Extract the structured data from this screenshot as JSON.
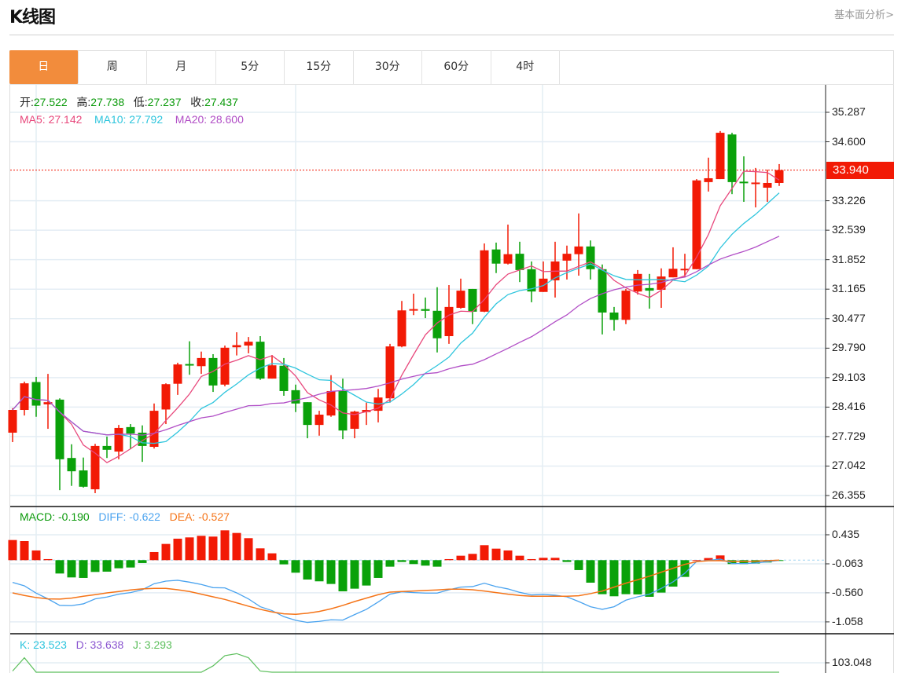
{
  "header": {
    "title": "K线图",
    "fundamental_link": "基本面分析>"
  },
  "tabs": [
    {
      "label": "日",
      "active": true
    },
    {
      "label": "周"
    },
    {
      "label": "月"
    },
    {
      "label": "5分"
    },
    {
      "label": "15分"
    },
    {
      "label": "30分"
    },
    {
      "label": "60分"
    },
    {
      "label": "4时"
    }
  ],
  "ohlc_legend": {
    "open_label": "开:",
    "open": "27.522",
    "high_label": "高:",
    "high": "27.738",
    "low_label": "低:",
    "low": "27.237",
    "close_label": "收:",
    "close": "27.437"
  },
  "ma_legend": {
    "ma5": "MA5: 27.142",
    "ma10": "MA10: 27.792",
    "ma20": "MA20: 28.600"
  },
  "macd_legend": {
    "macd": "MACD: -0.190",
    "diff": "DIFF: -0.622",
    "dea": "DEA: -0.527"
  },
  "kdj_legend": {
    "k": "K: 23.523",
    "d": "D: 33.638",
    "j": "J: 3.293"
  },
  "colors": {
    "up": "#f21a05",
    "down": "#0aa10a",
    "ma5": "#e8487c",
    "ma10": "#2ec5dd",
    "ma20": "#b14ec6",
    "diff": "#4aa3ef",
    "dea": "#f57418",
    "j": "#5cbf5c",
    "active_tab": "#f28c3c"
  },
  "chart_data": [
    {
      "type": "candlestick",
      "title": "K线图",
      "last_price": "33.940",
      "y_ticks": [
        "35.287",
        "34.600",
        "33.226",
        "32.539",
        "31.852",
        "31.165",
        "30.477",
        "29.790",
        "29.103",
        "28.416",
        "27.729",
        "27.042",
        "26.355"
      ],
      "ylim": [
        26.355,
        35.287
      ],
      "grid": true,
      "series_fields": [
        "open",
        "high",
        "low",
        "close"
      ],
      "candles": [
        [
          27.82,
          28.39,
          27.6,
          28.35
        ],
        [
          28.35,
          29.01,
          28.22,
          28.97
        ],
        [
          29.0,
          29.12,
          28.19,
          28.45
        ],
        [
          28.48,
          29.19,
          27.91,
          28.53
        ],
        [
          28.59,
          28.62,
          26.48,
          27.2
        ],
        [
          27.23,
          27.55,
          26.58,
          26.92
        ],
        [
          26.94,
          27.24,
          26.54,
          26.56
        ],
        [
          26.5,
          27.56,
          26.41,
          27.51
        ],
        [
          27.51,
          27.73,
          27.23,
          27.42
        ],
        [
          27.38,
          28.0,
          27.2,
          27.93
        ],
        [
          27.95,
          28.02,
          27.44,
          27.8
        ],
        [
          27.82,
          27.99,
          27.14,
          27.51
        ],
        [
          27.49,
          28.5,
          27.45,
          28.33
        ],
        [
          28.36,
          28.97,
          28.02,
          28.95
        ],
        [
          28.96,
          29.45,
          28.7,
          29.41
        ],
        [
          29.42,
          29.95,
          29.17,
          29.4
        ],
        [
          29.37,
          29.71,
          29.19,
          29.56
        ],
        [
          29.56,
          29.65,
          28.77,
          28.92
        ],
        [
          28.94,
          29.85,
          28.9,
          29.8
        ],
        [
          29.81,
          30.16,
          29.62,
          29.86
        ],
        [
          29.85,
          30.05,
          29.67,
          29.94
        ],
        [
          29.94,
          30.07,
          29.05,
          29.08
        ],
        [
          29.08,
          29.63,
          29.08,
          29.39
        ],
        [
          29.38,
          29.56,
          28.68,
          28.79
        ],
        [
          28.81,
          28.94,
          28.3,
          28.5
        ],
        [
          28.53,
          28.53,
          27.69,
          28.0
        ],
        [
          28.0,
          28.33,
          27.75,
          28.24
        ],
        [
          28.22,
          29.16,
          28.19,
          28.79
        ],
        [
          28.79,
          29.08,
          27.67,
          27.87
        ],
        [
          27.91,
          28.33,
          27.69,
          28.31
        ],
        [
          28.3,
          28.52,
          28.0,
          28.35
        ],
        [
          28.33,
          28.84,
          28.06,
          28.64
        ],
        [
          28.62,
          29.89,
          28.52,
          29.83
        ],
        [
          29.83,
          30.89,
          29.81,
          30.67
        ],
        [
          30.68,
          31.06,
          30.56,
          30.7
        ],
        [
          30.7,
          30.97,
          30.49,
          30.66
        ],
        [
          30.66,
          31.21,
          29.69,
          30.02
        ],
        [
          30.07,
          31.26,
          29.89,
          30.75
        ],
        [
          30.73,
          31.41,
          30.71,
          31.13
        ],
        [
          31.17,
          31.17,
          30.35,
          30.64
        ],
        [
          30.64,
          32.23,
          30.63,
          32.07
        ],
        [
          32.09,
          32.25,
          31.54,
          31.76
        ],
        [
          31.76,
          32.67,
          31.74,
          31.98
        ],
        [
          31.99,
          32.27,
          31.33,
          31.61
        ],
        [
          31.63,
          31.81,
          30.86,
          31.11
        ],
        [
          31.1,
          31.81,
          31.1,
          31.41
        ],
        [
          31.37,
          32.27,
          30.97,
          31.81
        ],
        [
          31.83,
          32.18,
          31.39,
          31.99
        ],
        [
          31.98,
          32.93,
          31.48,
          32.16
        ],
        [
          32.16,
          32.3,
          31.39,
          31.63
        ],
        [
          31.63,
          31.74,
          30.11,
          30.62
        ],
        [
          30.62,
          30.75,
          30.2,
          30.45
        ],
        [
          30.45,
          31.17,
          30.35,
          31.13
        ],
        [
          31.11,
          31.61,
          31.04,
          31.52
        ],
        [
          31.19,
          31.52,
          30.71,
          31.13
        ],
        [
          31.15,
          31.65,
          30.73,
          31.46
        ],
        [
          31.44,
          32.14,
          31.44,
          31.64
        ],
        [
          31.62,
          31.99,
          31.44,
          31.64
        ],
        [
          31.63,
          33.73,
          31.63,
          33.7
        ],
        [
          33.66,
          34.23,
          33.44,
          33.75
        ],
        [
          33.73,
          34.85,
          33.73,
          34.81
        ],
        [
          34.77,
          34.81,
          33.38,
          33.66
        ],
        [
          33.67,
          34.26,
          33.2,
          33.65
        ],
        [
          33.63,
          33.99,
          33.07,
          33.65
        ],
        [
          33.53,
          33.95,
          33.2,
          33.64
        ],
        [
          33.64,
          34.08,
          33.57,
          33.94
        ]
      ],
      "moving_averages": [
        5,
        10,
        20
      ]
    },
    {
      "type": "bar+line",
      "title": "MACD",
      "y_ticks": [
        "0.435",
        "-0.063",
        "-0.560",
        "-1.058"
      ],
      "ylim": [
        -1.1,
        0.55
      ],
      "macd": [
        0.345,
        0.327,
        0.166,
        0.018,
        -0.229,
        -0.296,
        -0.305,
        -0.202,
        -0.197,
        -0.139,
        -0.126,
        -0.049,
        0.139,
        0.278,
        0.368,
        0.39,
        0.417,
        0.404,
        0.511,
        0.466,
        0.377,
        0.202,
        0.117,
        -0.072,
        -0.215,
        -0.332,
        -0.363,
        -0.408,
        -0.534,
        -0.489,
        -0.435,
        -0.305,
        -0.112,
        -0.031,
        -0.067,
        -0.094,
        -0.112,
        0.018,
        0.076,
        0.108,
        0.256,
        0.197,
        0.166,
        0.076,
        0.018,
        0.04,
        0.04,
        -0.031,
        -0.17,
        -0.386,
        -0.583,
        -0.619,
        -0.583,
        -0.587,
        -0.628,
        -0.556,
        -0.453,
        -0.287,
        0.0,
        0.036,
        0.081,
        -0.067,
        -0.067,
        -0.058,
        -0.04,
        -0.013
      ],
      "diff": [
        -0.381,
        -0.44,
        -0.565,
        -0.664,
        -0.776,
        -0.78,
        -0.749,
        -0.664,
        -0.632,
        -0.583,
        -0.556,
        -0.507,
        -0.404,
        -0.359,
        -0.345,
        -0.377,
        -0.417,
        -0.471,
        -0.475,
        -0.561,
        -0.664,
        -0.798,
        -0.865,
        -0.969,
        -1.031,
        -1.067,
        -1.049,
        -1.022,
        -1.027,
        -0.933,
        -0.843,
        -0.717,
        -0.583,
        -0.543,
        -0.556,
        -0.565,
        -0.565,
        -0.507,
        -0.462,
        -0.453,
        -0.395,
        -0.453,
        -0.493,
        -0.552,
        -0.596,
        -0.587,
        -0.601,
        -0.628,
        -0.709,
        -0.798,
        -0.843,
        -0.798,
        -0.686,
        -0.628,
        -0.583,
        -0.484,
        -0.372,
        -0.224,
        -0.022,
        -0.004,
        0.018,
        -0.058,
        -0.058,
        -0.049,
        -0.027,
        -0.004
      ],
      "dea": [
        -0.561,
        -0.605,
        -0.641,
        -0.664,
        -0.668,
        -0.65,
        -0.619,
        -0.592,
        -0.561,
        -0.538,
        -0.511,
        -0.493,
        -0.484,
        -0.484,
        -0.507,
        -0.538,
        -0.583,
        -0.628,
        -0.673,
        -0.731,
        -0.789,
        -0.843,
        -0.888,
        -0.919,
        -0.928,
        -0.91,
        -0.879,
        -0.834,
        -0.776,
        -0.709,
        -0.65,
        -0.592,
        -0.547,
        -0.538,
        -0.529,
        -0.52,
        -0.511,
        -0.498,
        -0.498,
        -0.507,
        -0.529,
        -0.556,
        -0.583,
        -0.605,
        -0.619,
        -0.619,
        -0.619,
        -0.619,
        -0.61,
        -0.574,
        -0.529,
        -0.462,
        -0.395,
        -0.336,
        -0.274,
        -0.206,
        -0.139,
        -0.072,
        -0.027,
        -0.009,
        -0.009,
        -0.022,
        -0.022,
        -0.018,
        -0.009,
        0.0
      ]
    },
    {
      "type": "line",
      "title": "KDJ",
      "y_ticks": [
        "103.048"
      ],
      "j": [
        95,
        108,
        92,
        70,
        50,
        40,
        35,
        40,
        45,
        50,
        55,
        60,
        65,
        70,
        75,
        80,
        85,
        100,
        110,
        112,
        108,
        95,
        70,
        50,
        40,
        30,
        30,
        35,
        40,
        45,
        50,
        55,
        60,
        65,
        70,
        60,
        55,
        50,
        50,
        55,
        60,
        60,
        55,
        50,
        45,
        45,
        50,
        55,
        60,
        50,
        40,
        35,
        40,
        45,
        50,
        55,
        60,
        65,
        80,
        85,
        75,
        60,
        45,
        30,
        15,
        3.293
      ]
    }
  ]
}
